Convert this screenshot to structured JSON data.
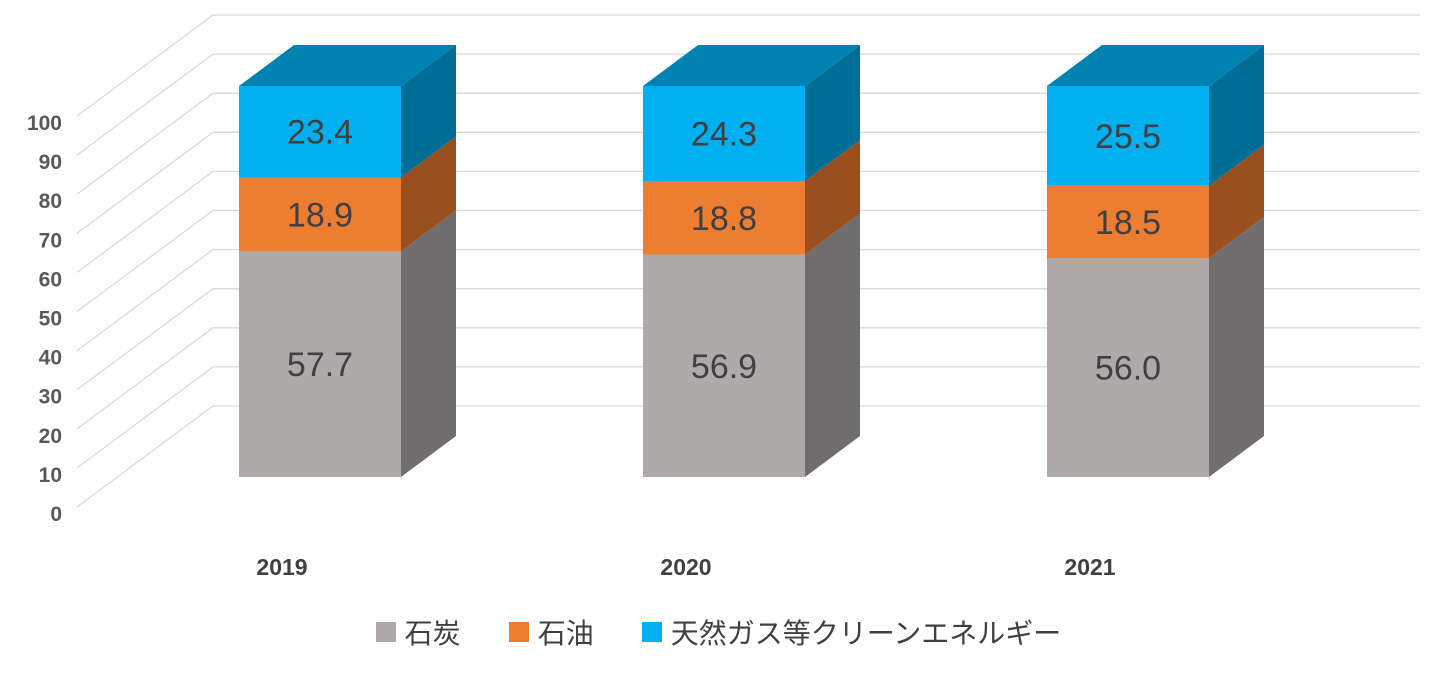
{
  "chart_data": {
    "type": "bar",
    "stacked": true,
    "style": "3d-stacked-column",
    "title": "",
    "xlabel": "",
    "ylabel": "",
    "ylim": [
      0,
      100
    ],
    "yticks": [
      "0",
      "10",
      "20",
      "30",
      "40",
      "50",
      "60",
      "70",
      "80",
      "90",
      "100"
    ],
    "categories": [
      "2019",
      "2020",
      "2021"
    ],
    "series": [
      {
        "name": "石炭",
        "values": [
          57.7,
          56.9,
          56.0
        ],
        "labels": [
          "57.7",
          "56.9",
          "56.0"
        ],
        "color": "#aeaaaa",
        "side": "#6f6d6d",
        "top": "#8f8b8b"
      },
      {
        "name": "石油",
        "values": [
          18.9,
          18.8,
          18.5
        ],
        "labels": [
          "18.9",
          "18.8",
          "18.5"
        ],
        "color": "#ed7d31",
        "side": "#9a4f1e",
        "top": "#c4631f"
      },
      {
        "name": "天然ガス等クリーンエネルギー",
        "values": [
          23.4,
          24.3,
          25.5
        ],
        "labels": [
          "23.4",
          "24.3",
          "25.5"
        ],
        "color": "#00b0f0",
        "side": "#006d97",
        "top": "#0083b3"
      }
    ],
    "grid": true,
    "legend_position": "bottom"
  }
}
